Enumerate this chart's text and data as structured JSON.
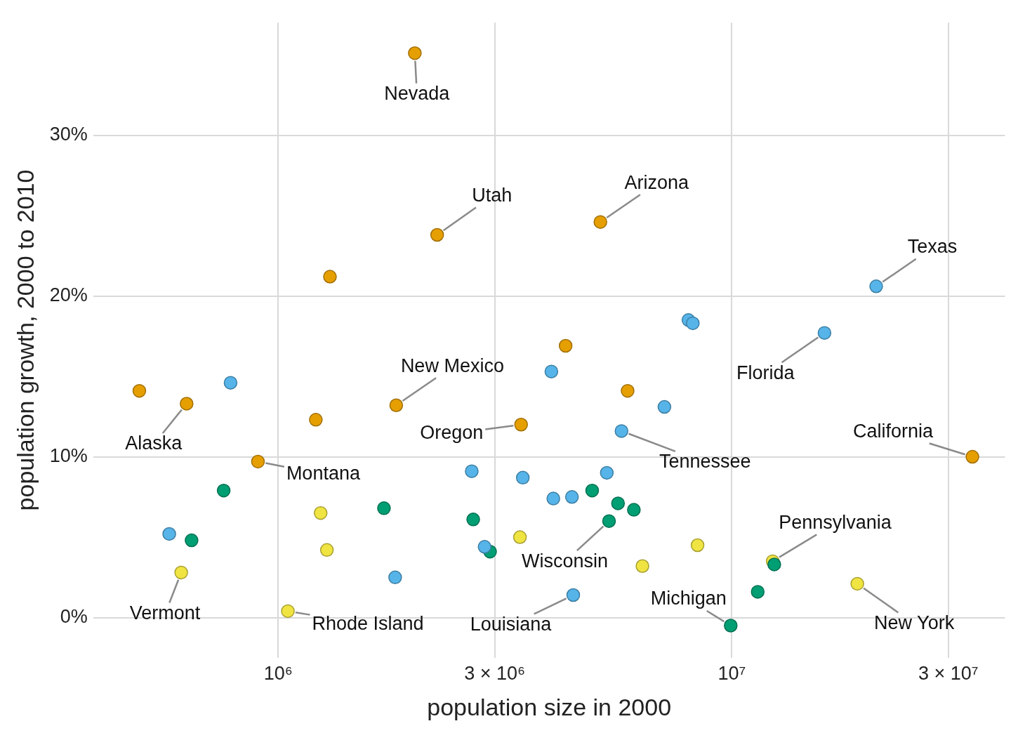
{
  "chart_data": {
    "type": "scatter",
    "xlabel": "population size in 2000",
    "ylabel": "population growth, 2000 to 2010",
    "log": "x",
    "grid": true,
    "marker": "circle",
    "xlim": [
      391000,
      40000000
    ],
    "ylim": [
      -2.5,
      37
    ],
    "xticks": [
      {
        "value": 1000000,
        "label": "10⁶"
      },
      {
        "value": 3000000,
        "label": "3 × 10⁶"
      },
      {
        "value": 10000000,
        "label": "10⁷"
      },
      {
        "value": 30000000,
        "label": "3 × 10⁷"
      }
    ],
    "yticks": [
      {
        "value": 0,
        "label": "0%"
      },
      {
        "value": 10,
        "label": "10%"
      },
      {
        "value": 20,
        "label": "20%"
      },
      {
        "value": 30,
        "label": "30%"
      }
    ],
    "series": [
      {
        "color": "#e69f00",
        "x": [
          2000000,
          2240000,
          5130000,
          1300000,
          4300000,
          494000,
          628000,
          1210000,
          1820000,
          3430000,
          5890000,
          902000,
          33900000
        ],
        "values": [
          35.1,
          23.8,
          24.6,
          21.2,
          16.9,
          14.1,
          13.3,
          12.3,
          13.2,
          12.0,
          14.1,
          9.7,
          10.0
        ]
      },
      {
        "color": "#56b4e9",
        "x": [
          20800000,
          8020000,
          8200000,
          16000000,
          4000000,
          785000,
          7100000,
          5710000,
          2670000,
          3460000,
          5300000,
          4040000,
          4440000,
          575000,
          2850000,
          1810000,
          4470000
        ],
        "values": [
          20.6,
          18.5,
          18.3,
          17.7,
          15.3,
          14.6,
          13.1,
          11.6,
          9.1,
          8.7,
          9.0,
          7.4,
          7.5,
          5.2,
          4.4,
          2.5,
          1.4
        ]
      },
      {
        "color": "#009e73",
        "x": [
          758000,
          644000,
          1710000,
          2690000,
          2930000,
          4920000,
          5610000,
          6080000,
          5360000,
          12400000,
          11400000,
          9940000
        ],
        "values": [
          7.9,
          4.8,
          6.8,
          6.1,
          4.1,
          7.9,
          7.1,
          6.7,
          6.0,
          3.3,
          1.6,
          -0.5
        ]
      },
      {
        "color": "#f0e442",
        "x": [
          611000,
          1050000,
          1240000,
          1280000,
          3410000,
          6350000,
          8400000,
          12300000,
          18900000
        ],
        "values": [
          2.8,
          0.4,
          6.5,
          4.2,
          5.0,
          3.2,
          4.5,
          3.5,
          2.1
        ]
      }
    ],
    "annotations": [
      {
        "text": "Nevada",
        "x": 2000000,
        "y": 35.1
      },
      {
        "text": "Utah",
        "x": 2240000,
        "y": 23.8
      },
      {
        "text": "Arizona",
        "x": 5130000,
        "y": 24.6
      },
      {
        "text": "Texas",
        "x": 20800000,
        "y": 20.6
      },
      {
        "text": "Florida",
        "x": 16000000,
        "y": 17.7
      },
      {
        "text": "New Mexico",
        "x": 1820000,
        "y": 13.2
      },
      {
        "text": "Alaska",
        "x": 628000,
        "y": 13.3
      },
      {
        "text": "Oregon",
        "x": 3430000,
        "y": 12.0
      },
      {
        "text": "California",
        "x": 33900000,
        "y": 10.0
      },
      {
        "text": "Montana",
        "x": 902000,
        "y": 9.7
      },
      {
        "text": "Tennessee",
        "x": 5710000,
        "y": 11.6
      },
      {
        "text": "Wisconsin",
        "x": 5360000,
        "y": 6.0
      },
      {
        "text": "Pennsylvania",
        "x": 12300000,
        "y": 3.5
      },
      {
        "text": "Vermont",
        "x": 611000,
        "y": 2.8
      },
      {
        "text": "Rhode Island",
        "x": 1050000,
        "y": 0.4
      },
      {
        "text": "Louisiana",
        "x": 4470000,
        "y": 1.4
      },
      {
        "text": "Michigan",
        "x": 9940000,
        "y": -0.5
      },
      {
        "text": "New York",
        "x": 18900000,
        "y": 2.1
      }
    ]
  }
}
